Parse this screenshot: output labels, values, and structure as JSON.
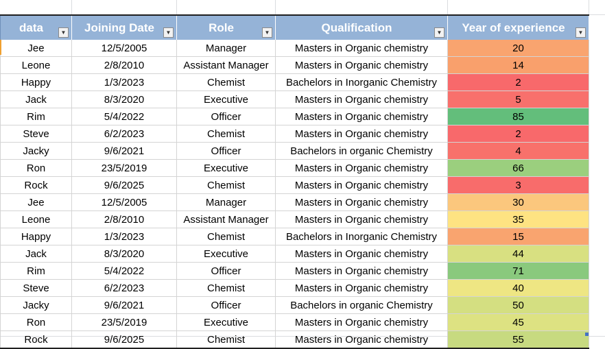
{
  "sheet": {
    "columns": [
      {
        "label": "data",
        "key": "name"
      },
      {
        "label": "Joining Date",
        "key": "date"
      },
      {
        "label": "Role",
        "key": "role"
      },
      {
        "label": "Qualification",
        "key": "qual"
      },
      {
        "label": "Year of experience",
        "key": "exp"
      }
    ],
    "filter_icon": "dropdown-arrow-icon",
    "rows": [
      {
        "name": "Jee",
        "date": "12/5/2005",
        "role": "Manager",
        "qual": "Masters in Organic chemistry",
        "exp": "20",
        "color": "#f9a46f"
      },
      {
        "name": "Leone",
        "date": "2/8/2010",
        "role": "Assistant Manager",
        "qual": "Masters in Organic chemistry",
        "exp": "14",
        "color": "#f9a06c"
      },
      {
        "name": "Happy",
        "date": "1/3/2023",
        "role": "Chemist",
        "qual": "Bachelors in Inorganic Chemistry",
        "exp": "2",
        "color": "#f8696b"
      },
      {
        "name": "Jack",
        "date": "8/3/2020",
        "role": "Executive",
        "qual": "Masters in Organic chemistry",
        "exp": "5",
        "color": "#f8706c"
      },
      {
        "name": "Rim",
        "date": "5/4/2022",
        "role": "Officer",
        "qual": "Masters in Organic chemistry",
        "exp": "85",
        "color": "#63be7b"
      },
      {
        "name": "Steve",
        "date": "6/2/2023",
        "role": "Chemist",
        "qual": "Masters in Organic chemistry",
        "exp": "2",
        "color": "#f8696b"
      },
      {
        "name": "Jacky",
        "date": "9/6/2021",
        "role": "Officer",
        "qual": "Bachelors in organic Chemistry",
        "exp": "4",
        "color": "#f8716b"
      },
      {
        "name": "Ron",
        "date": "23/5/2019",
        "role": "Executive",
        "qual": "Masters in Organic chemistry",
        "exp": "66",
        "color": "#9bcf7e"
      },
      {
        "name": "Rock",
        "date": "9/6/2025",
        "role": "Chemist",
        "qual": "Masters in Organic chemistry",
        "exp": "3",
        "color": "#f86c6b"
      },
      {
        "name": "Jee",
        "date": "12/5/2005",
        "role": "Manager",
        "qual": "Masters in Organic chemistry",
        "exp": "30",
        "color": "#fbc77d"
      },
      {
        "name": "Leone",
        "date": "2/8/2010",
        "role": "Assistant Manager",
        "qual": "Masters in Organic chemistry",
        "exp": "35",
        "color": "#fee382"
      },
      {
        "name": "Happy",
        "date": "1/3/2023",
        "role": "Chemist",
        "qual": "Bachelors in Inorganic Chemistry",
        "exp": "15",
        "color": "#f9a46f"
      },
      {
        "name": "Jack",
        "date": "8/3/2020",
        "role": "Executive",
        "qual": "Masters in Organic chemistry",
        "exp": "44",
        "color": "#d8e081"
      },
      {
        "name": "Rim",
        "date": "5/4/2022",
        "role": "Officer",
        "qual": "Masters in Organic chemistry",
        "exp": "71",
        "color": "#8ac97d"
      },
      {
        "name": "Steve",
        "date": "6/2/2023",
        "role": "Chemist",
        "qual": "Masters in Organic chemistry",
        "exp": "40",
        "color": "#eee683"
      },
      {
        "name": "Jacky",
        "date": "9/6/2021",
        "role": "Officer",
        "qual": "Bachelors in organic Chemistry",
        "exp": "50",
        "color": "#d4df81"
      },
      {
        "name": "Ron",
        "date": "23/5/2019",
        "role": "Executive",
        "qual": "Masters in Organic chemistry",
        "exp": "45",
        "color": "#dde282"
      },
      {
        "name": "Rock",
        "date": "9/6/2025",
        "role": "Chemist",
        "qual": "Masters in Organic chemistry",
        "exp": "55",
        "color": "#c7da80"
      }
    ]
  }
}
